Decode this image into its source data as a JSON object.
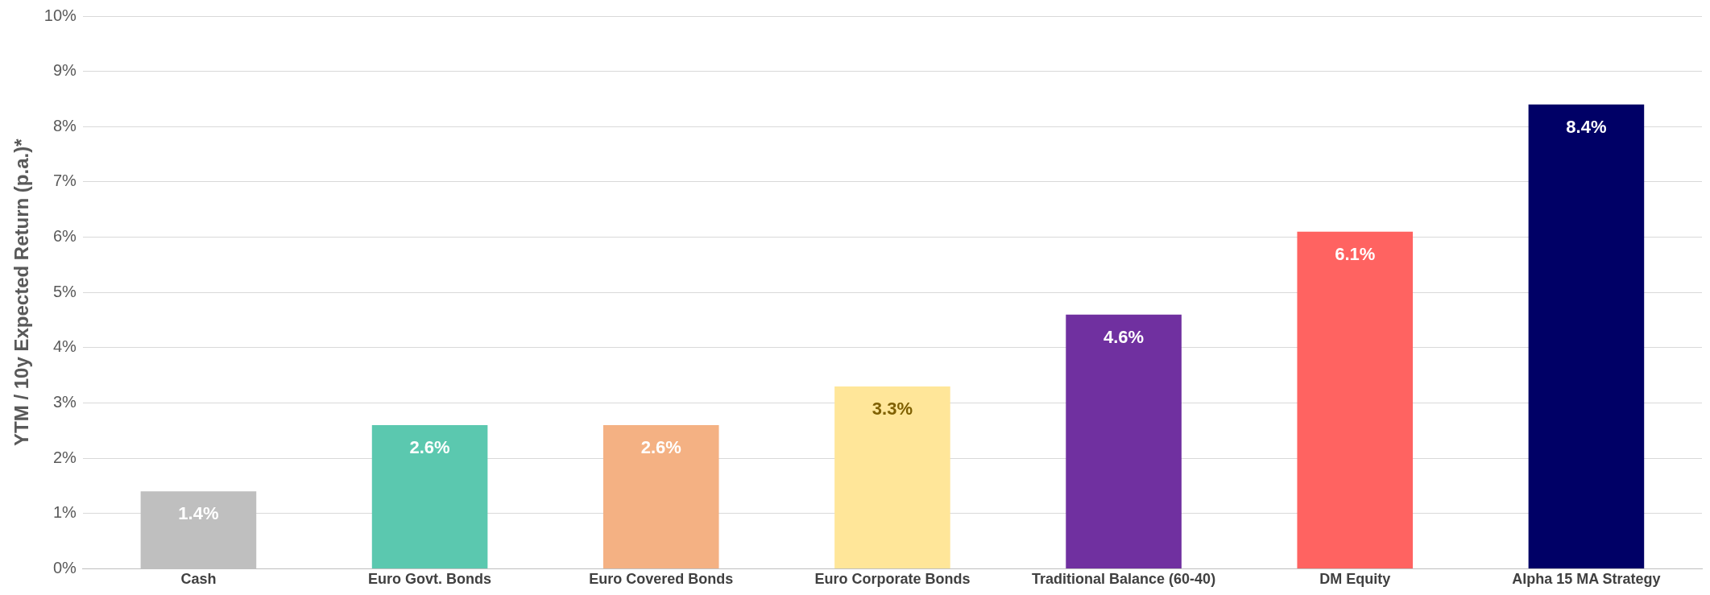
{
  "chart_data": {
    "type": "bar",
    "ylabel": "YTM / 10y Expected Return (p.a.)*",
    "categories": [
      "Cash",
      "Euro Govt. Bonds",
      "Euro Covered Bonds",
      "Euro Corporate Bonds",
      "Traditional Balance (60-40)",
      "DM Equity",
      "Alpha 15 MA Strategy"
    ],
    "values": [
      1.4,
      2.6,
      2.6,
      3.3,
      4.6,
      6.1,
      8.4
    ],
    "value_labels": [
      "1.4%",
      "2.6%",
      "2.6%",
      "3.3%",
      "4.6%",
      "6.1%",
      "8.4%"
    ],
    "colors": [
      "#bfbfbf",
      "#5bc8af",
      "#f4b183",
      "#ffe699",
      "#7030a0",
      "#ff6361",
      "#000066"
    ],
    "ylim": [
      0,
      10
    ],
    "yticks": [
      {
        "value": 0,
        "label": "0%"
      },
      {
        "value": 1,
        "label": "1%"
      },
      {
        "value": 2,
        "label": "2%"
      },
      {
        "value": 3,
        "label": "3%"
      },
      {
        "value": 4,
        "label": "4%"
      },
      {
        "value": 5,
        "label": "5%"
      },
      {
        "value": 6,
        "label": "6%"
      },
      {
        "value": 7,
        "label": "7%"
      },
      {
        "value": 8,
        "label": "8%"
      },
      {
        "value": 9,
        "label": "9%"
      },
      {
        "value": 10,
        "label": "10%"
      }
    ],
    "grid": "y"
  }
}
